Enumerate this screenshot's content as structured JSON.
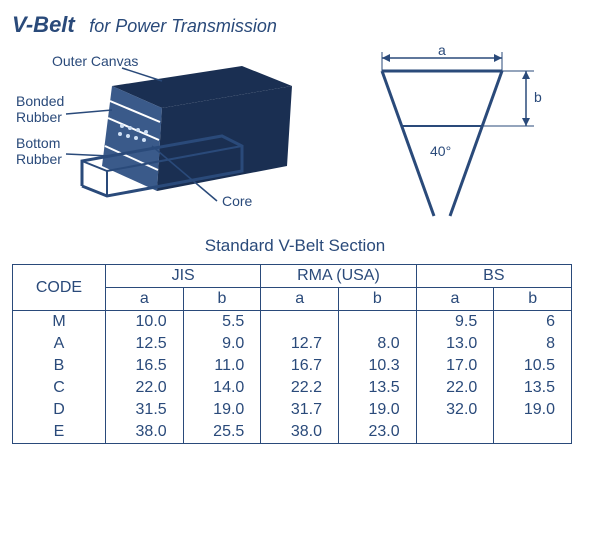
{
  "title_strong": "V-Belt",
  "title_sub": "for Power Transmission",
  "labels": {
    "outer_canvas": "Outer Canvas",
    "bonded_rubber": "Bonded\nRubber",
    "bottom_rubber": "Bottom\nRubber",
    "core": "Core",
    "dim_a": "a",
    "dim_b": "b",
    "angle": "40°"
  },
  "table_caption": "Standard V-Belt Section",
  "table": {
    "header_code": "CODE",
    "groups": [
      "JIS",
      "RMA (USA)",
      "BS"
    ],
    "sub": [
      "a",
      "b",
      "a",
      "b",
      "a",
      "b"
    ],
    "rows": [
      {
        "code": "M",
        "jis_a": "10.0",
        "jis_b": "5.5",
        "rma_a": "",
        "rma_b": "",
        "bs_a": "9.5",
        "bs_b": "6"
      },
      {
        "code": "A",
        "jis_a": "12.5",
        "jis_b": "9.0",
        "rma_a": "12.7",
        "rma_b": "8.0",
        "bs_a": "13.0",
        "bs_b": "8"
      },
      {
        "code": "B",
        "jis_a": "16.5",
        "jis_b": "11.0",
        "rma_a": "16.7",
        "rma_b": "10.3",
        "bs_a": "17.0",
        "bs_b": "10.5"
      },
      {
        "code": "C",
        "jis_a": "22.0",
        "jis_b": "14.0",
        "rma_a": "22.2",
        "rma_b": "13.5",
        "bs_a": "22.0",
        "bs_b": "13.5"
      },
      {
        "code": "D",
        "jis_a": "31.5",
        "jis_b": "19.0",
        "rma_a": "31.7",
        "rma_b": "19.0",
        "bs_a": "32.0",
        "bs_b": "19.0"
      },
      {
        "code": "E",
        "jis_a": "38.0",
        "jis_b": "25.5",
        "rma_a": "38.0",
        "rma_b": "23.0",
        "bs_a": "",
        "bs_b": ""
      }
    ]
  },
  "style": {
    "primary_color": "#2a4a7a",
    "belt_dark": "#1a2f52",
    "belt_face": "#3a5a8a",
    "core_pattern": "#5a7aaa"
  }
}
